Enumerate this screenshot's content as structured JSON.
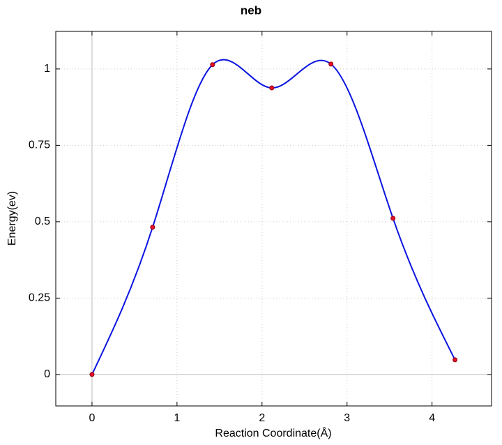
{
  "chart_data": {
    "type": "line",
    "title": "neb",
    "x_label": "Reaction Coordinate(Å)",
    "y_label": "Energy(ev)",
    "x": [
      0,
      0.713,
      1.418,
      2.115,
      2.811,
      3.541,
      4.27
    ],
    "values": [
      0,
      0.482,
      1.014,
      0.938,
      1.016,
      0.511,
      0.048
    ],
    "line_color": "#0a14e0",
    "marker_color": "#e8102a",
    "marker_edge": "#8a0010",
    "xlim": [
      -0.426,
      4.7
    ],
    "ylim": [
      -0.103,
      1.123
    ],
    "xticks": [
      0,
      1,
      2,
      3,
      4
    ],
    "yticks": [
      0,
      0.25,
      0.5,
      0.75,
      1
    ],
    "grid": true,
    "smooth": true
  }
}
